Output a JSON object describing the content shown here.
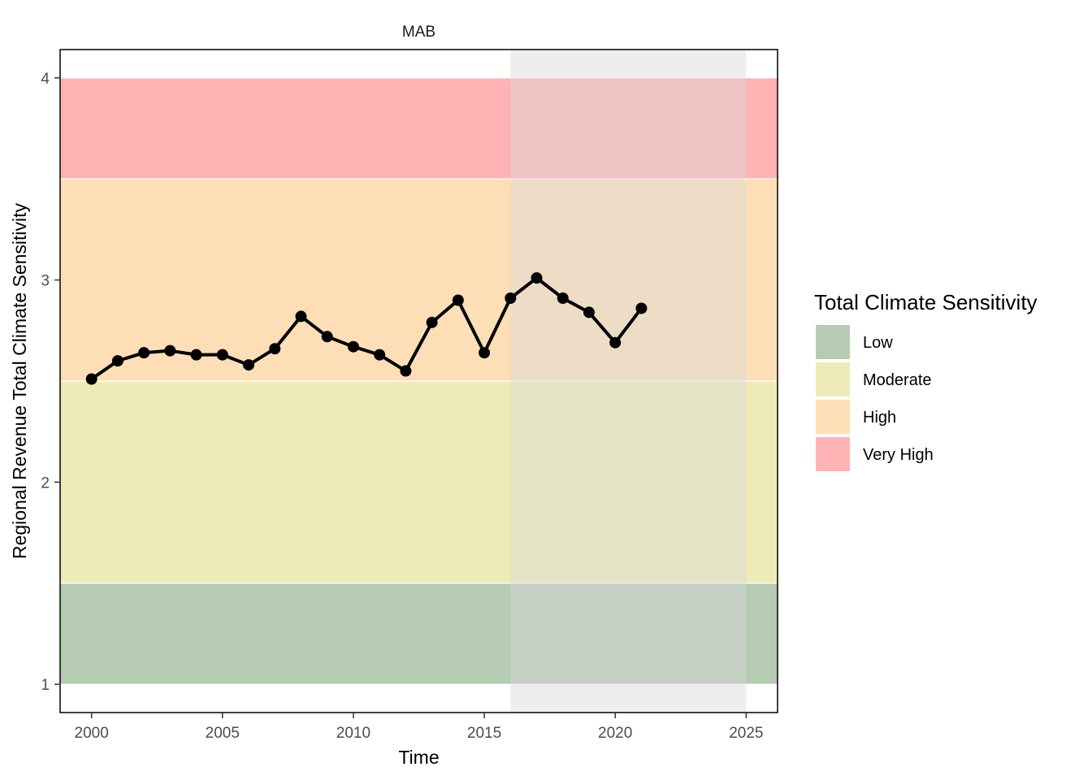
{
  "chart_data": {
    "type": "line",
    "facet": "MAB",
    "xlabel": "Time",
    "ylabel": "Regional Revenue Total Climate Sensitivity",
    "xlim": [
      1998.8,
      2026.2
    ],
    "ylim": [
      0.86,
      4.14
    ],
    "x_ticks": [
      2000,
      2005,
      2010,
      2015,
      2020,
      2025
    ],
    "y_ticks": [
      1,
      2,
      3,
      4
    ],
    "grid": false,
    "highlight_region": {
      "x": [
        2016,
        2025
      ],
      "color": "#d9d9d9"
    },
    "bands": [
      {
        "name": "Low",
        "range": [
          1,
          1.5
        ],
        "color": "#b5cbb2"
      },
      {
        "name": "Moderate",
        "range": [
          1.5,
          2.5
        ],
        "color": "#eeebb6"
      },
      {
        "name": "High",
        "range": [
          2.5,
          3.5
        ],
        "color": "#fddeb6"
      },
      {
        "name": "Very High",
        "range": [
          3.5,
          4
        ],
        "color": "#ffb3b4"
      }
    ],
    "legend": {
      "title": "Total Climate Sensitivity",
      "position": "right"
    },
    "series": [
      {
        "x": [
          2000,
          2001,
          2002,
          2003,
          2004,
          2005,
          2006,
          2007,
          2008,
          2009,
          2010,
          2011,
          2012,
          2013,
          2014,
          2015,
          2016,
          2017,
          2018,
          2019,
          2020,
          2021
        ],
        "values": [
          2.51,
          2.6,
          2.64,
          2.65,
          2.63,
          2.63,
          2.58,
          2.66,
          2.82,
          2.72,
          2.67,
          2.63,
          2.55,
          2.79,
          2.9,
          2.64,
          2.91,
          3.01,
          2.91,
          2.84,
          2.69,
          2.86
        ],
        "color": "#000000"
      }
    ]
  }
}
